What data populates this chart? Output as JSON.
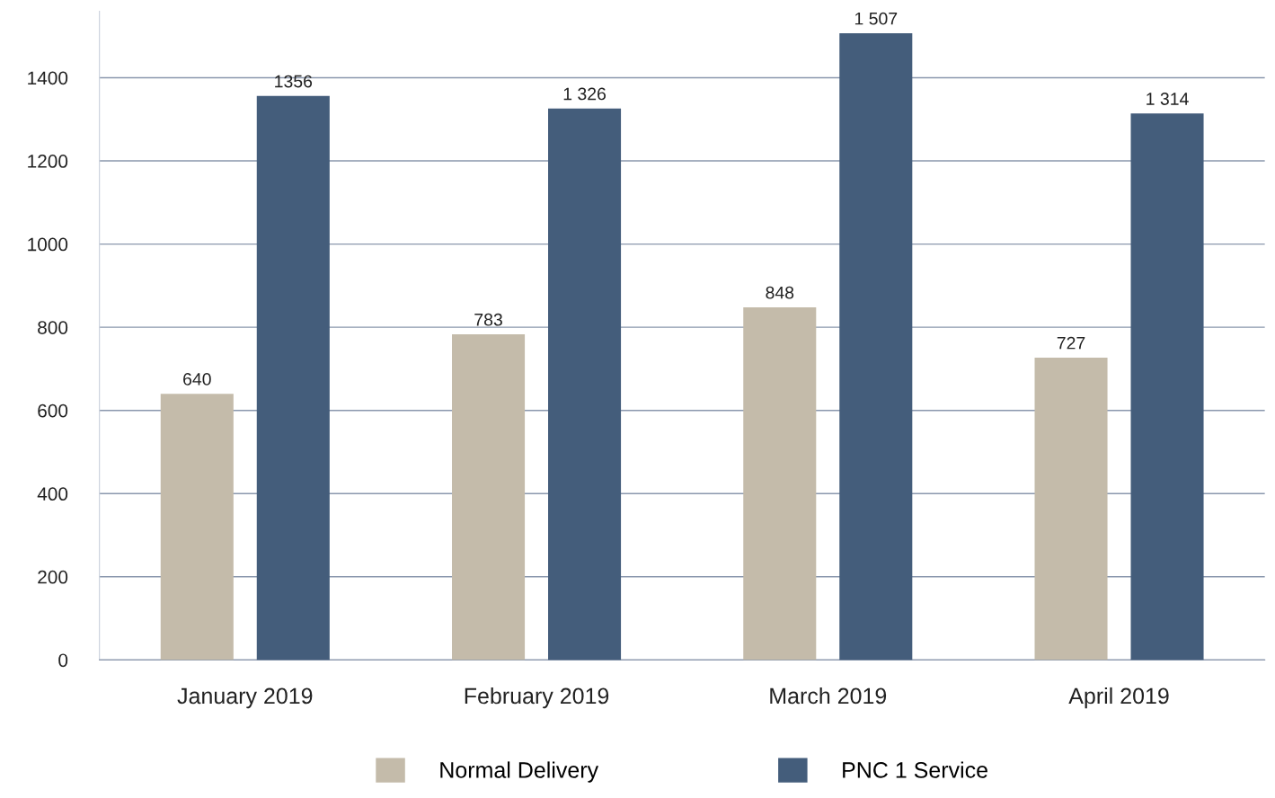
{
  "chart_data": {
    "type": "bar",
    "categories": [
      "January 2019",
      "February 2019",
      "March 2019",
      "April 2019"
    ],
    "series": [
      {
        "name": "Normal Delivery",
        "color": "#c4bbaa",
        "values": [
          640,
          783,
          848,
          727
        ],
        "value_labels": [
          "640",
          "783",
          "848",
          "727"
        ]
      },
      {
        "name": "PNC 1 Service",
        "color": "#445d7b",
        "values": [
          1356,
          1326,
          1507,
          1314
        ],
        "value_labels": [
          "1356",
          "1 326",
          "1 507",
          "1 314"
        ]
      }
    ],
    "ylim": [
      0,
      1560
    ],
    "yticks": [
      0,
      200,
      400,
      600,
      800,
      1000,
      1200,
      1400
    ],
    "grid": "y",
    "legend": "bottom"
  }
}
